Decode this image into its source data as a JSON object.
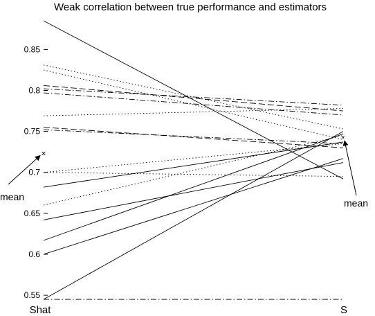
{
  "chart_data": {
    "type": "line",
    "title": "Weak correlation between true performance and estimators",
    "categories": [
      "Shat",
      "S"
    ],
    "ylim": [
      0.545,
      0.885
    ],
    "yticks": [
      0.55,
      0.6,
      0.65,
      0.7,
      0.75,
      0.8,
      0.85
    ],
    "ytick_labels": [
      "0.55",
      "0.6",
      "0.65",
      "0.7",
      "0.75",
      "0.8",
      "0.85"
    ],
    "grid": false,
    "series": [
      {
        "values": [
          0.885,
          0.692
        ],
        "dash": "solid"
      },
      {
        "values": [
          0.831,
          0.753
        ],
        "dash": "dotted"
      },
      {
        "values": [
          0.825,
          0.74
        ],
        "dash": "dotted"
      },
      {
        "values": [
          0.806,
          0.775
        ],
        "dash": "dashed"
      },
      {
        "values": [
          0.802,
          0.782
        ],
        "dash": "dashdot"
      },
      {
        "values": [
          0.797,
          0.77
        ],
        "dash": "dashdot"
      },
      {
        "values": [
          0.769,
          0.778
        ],
        "dash": "dotted"
      },
      {
        "values": [
          0.755,
          0.73
        ],
        "dash": "dashed"
      },
      {
        "values": [
          0.752,
          0.735
        ],
        "dash": "dashdot"
      },
      {
        "values": [
          0.7,
          0.735
        ],
        "dash": "dotted"
      },
      {
        "values": [
          0.7,
          0.695
        ],
        "dash": "dotted"
      },
      {
        "values": [
          0.682,
          0.737
        ],
        "dash": "solid"
      },
      {
        "values": [
          0.66,
          0.745
        ],
        "dash": "dotted"
      },
      {
        "values": [
          0.642,
          0.712
        ],
        "dash": "solid"
      },
      {
        "values": [
          0.617,
          0.747
        ],
        "dash": "solid"
      },
      {
        "values": [
          0.6,
          0.717
        ],
        "dash": "solid"
      },
      {
        "values": [
          0.545,
          0.75
        ],
        "dash": "solid"
      },
      {
        "values": [
          0.545,
          0.545
        ],
        "dash": "dashdot"
      }
    ],
    "means": [
      {
        "category": "Shat",
        "value": 0.723,
        "marker": "×"
      },
      {
        "category": "S",
        "value": 0.741,
        "marker": "*"
      }
    ],
    "annotations": [
      {
        "text": "mean",
        "target": "Shat"
      },
      {
        "text": "mean",
        "target": "S"
      }
    ]
  }
}
